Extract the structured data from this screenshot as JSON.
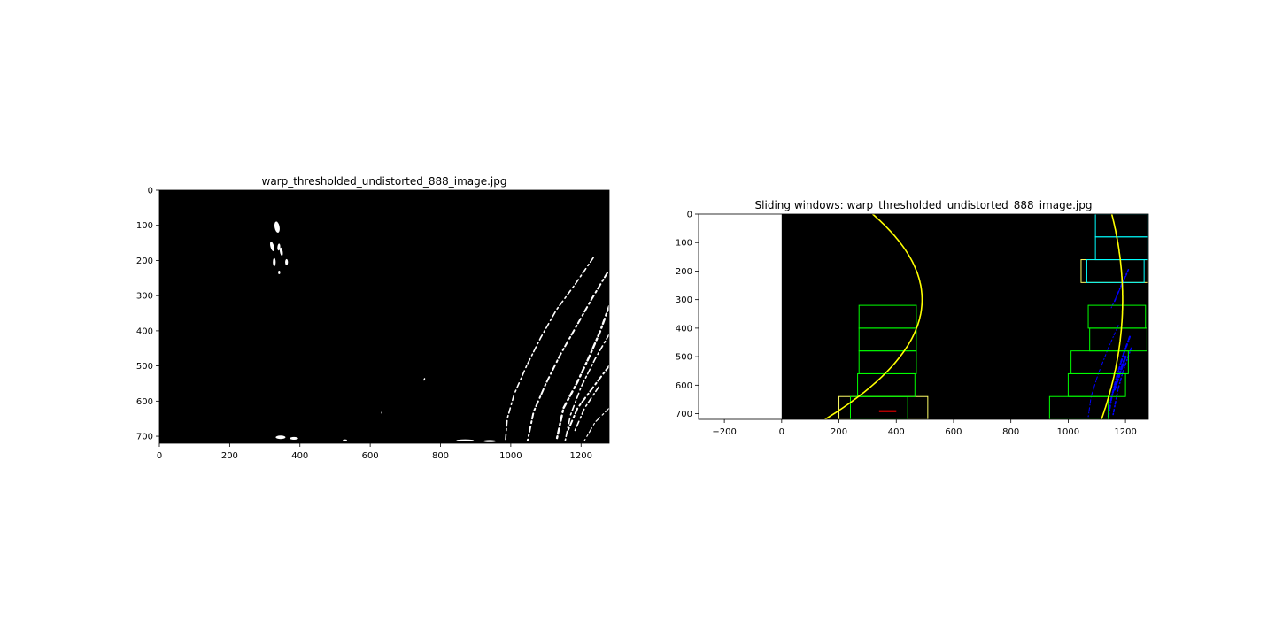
{
  "figure": {
    "background": "#ffffff"
  },
  "chart_data": [
    {
      "type": "image",
      "title": "warp_thresholded_undistorted_888_image.jpg",
      "xlabel": "",
      "ylabel": "",
      "xlim": [
        0,
        1280
      ],
      "ylim": [
        720,
        0
      ],
      "xticks": [
        0,
        200,
        400,
        600,
        800,
        1000,
        1200
      ],
      "yticks": [
        0,
        100,
        200,
        300,
        400,
        500,
        600,
        700
      ],
      "grid": false,
      "legend": "none",
      "colors": {
        "background": "#000000",
        "pixels": "#ffffff"
      },
      "blobs": [
        {
          "x": 335,
          "y": 105,
          "rx": 7,
          "ry": 16,
          "rot": -10
        },
        {
          "x": 321,
          "y": 160,
          "rx": 5,
          "ry": 14,
          "rot": -15
        },
        {
          "x": 340,
          "y": 162,
          "rx": 4,
          "ry": 10,
          "rot": 5
        },
        {
          "x": 347,
          "y": 175,
          "rx": 4,
          "ry": 12,
          "rot": -10
        },
        {
          "x": 327,
          "y": 205,
          "rx": 4,
          "ry": 12,
          "rot": 0
        },
        {
          "x": 362,
          "y": 205,
          "rx": 4,
          "ry": 9,
          "rot": 0
        },
        {
          "x": 341,
          "y": 234,
          "rx": 3,
          "ry": 5,
          "rot": 0
        },
        {
          "x": 754,
          "y": 538,
          "rx": 2,
          "ry": 4,
          "rot": 20
        },
        {
          "x": 633,
          "y": 633,
          "rx": 2,
          "ry": 3,
          "rot": 0
        },
        {
          "x": 345,
          "y": 703,
          "rx": 14,
          "ry": 5,
          "rot": 0
        },
        {
          "x": 383,
          "y": 706,
          "rx": 12,
          "ry": 4,
          "rot": 0
        },
        {
          "x": 528,
          "y": 712,
          "rx": 6,
          "ry": 3,
          "rot": 0
        },
        {
          "x": 870,
          "y": 712,
          "rx": 25,
          "ry": 3,
          "rot": 0
        },
        {
          "x": 940,
          "y": 714,
          "rx": 18,
          "ry": 3,
          "rot": 0
        }
      ],
      "strokes": [
        {
          "points": [
            [
              1235,
              192
            ],
            [
              1185,
              265
            ],
            [
              1130,
              340
            ],
            [
              1085,
              420
            ],
            [
              1045,
              500
            ],
            [
              1010,
              580
            ],
            [
              990,
              650
            ],
            [
              985,
              712
            ]
          ],
          "width": 4
        },
        {
          "points": [
            [
              1275,
              235
            ],
            [
              1230,
              310
            ],
            [
              1185,
              390
            ],
            [
              1140,
              470
            ],
            [
              1100,
              550
            ],
            [
              1065,
              630
            ],
            [
              1048,
              712
            ]
          ],
          "width": 5
        },
        {
          "points": [
            [
              1280,
              330
            ],
            [
              1255,
              400
            ],
            [
              1225,
              470
            ],
            [
              1190,
              545
            ],
            [
              1150,
              620
            ],
            [
              1130,
              712
            ]
          ],
          "width": 6
        },
        {
          "points": [
            [
              1280,
              410
            ],
            [
              1240,
              480
            ],
            [
              1200,
              560
            ],
            [
              1170,
              640
            ],
            [
              1155,
              712
            ]
          ],
          "width": 4
        },
        {
          "points": [
            [
              1280,
              500
            ],
            [
              1235,
              560
            ],
            [
              1190,
              620
            ],
            [
              1160,
              690
            ]
          ],
          "width": 5
        },
        {
          "points": [
            [
              1250,
              560
            ],
            [
              1210,
              620
            ],
            [
              1180,
              690
            ]
          ],
          "width": 4
        },
        {
          "points": [
            [
              1280,
              620
            ],
            [
              1240,
              660
            ],
            [
              1210,
              712
            ]
          ],
          "width": 3
        }
      ]
    },
    {
      "type": "image",
      "title": "Sliding windows: warp_thresholded_undistorted_888_image.jpg",
      "xlabel": "",
      "ylabel": "",
      "xlim": [
        -290,
        1280
      ],
      "ylim": [
        720,
        0
      ],
      "xticks": [
        -200,
        0,
        200,
        400,
        600,
        800,
        1000,
        1200
      ],
      "yticks": [
        0,
        100,
        200,
        300,
        400,
        500,
        600,
        700
      ],
      "grid": false,
      "legend": "none",
      "colors": {
        "image_background": "#000000",
        "window": "#00ff00",
        "window_alt": "#ffff66",
        "window_cyan": "#00ffff",
        "lane_pixels": "#0000ff",
        "fit_curve": "#ffff00",
        "label": "#ff0000"
      },
      "left_windows": [
        [
          200,
          640,
          510,
          720,
          "window_alt"
        ],
        [
          240,
          640,
          440,
          720,
          "window"
        ],
        [
          265,
          560,
          465,
          640,
          "window"
        ],
        [
          270,
          480,
          470,
          560,
          "window"
        ],
        [
          270,
          400,
          470,
          480,
          "window"
        ],
        [
          270,
          320,
          470,
          400,
          "window"
        ]
      ],
      "right_windows": [
        [
          935,
          640,
          1140,
          720,
          "window"
        ],
        [
          1000,
          560,
          1200,
          640,
          "window"
        ],
        [
          1010,
          480,
          1210,
          560,
          "window"
        ],
        [
          1075,
          400,
          1275,
          480,
          "window"
        ],
        [
          1070,
          320,
          1270,
          400,
          "window"
        ],
        [
          1045,
          160,
          1280,
          240,
          "window_alt"
        ],
        [
          1065,
          160,
          1265,
          240,
          "window_cyan"
        ],
        [
          1095,
          80,
          1280,
          160,
          "window_cyan"
        ],
        [
          1095,
          0,
          1280,
          80,
          "window_cyan"
        ]
      ],
      "left_fit": {
        "y_vertex": 300,
        "x_vertex": 490,
        "a": -0.00192
      },
      "right_fit": {
        "y_vertex": 300,
        "x_vertex": 1190,
        "a": -0.00042
      },
      "lane_pixels": [
        {
          "points": [
            [
              1210,
              195
            ],
            [
              1185,
              250
            ],
            [
              1160,
              310
            ]
          ],
          "width": 3
        },
        {
          "points": [
            [
              1205,
              210
            ],
            [
              1175,
              275
            ],
            [
              1150,
              330
            ]
          ],
          "width": 2
        },
        {
          "points": [
            [
              1175,
              390
            ],
            [
              1140,
              470
            ],
            [
              1105,
              560
            ],
            [
              1080,
              640
            ],
            [
              1070,
              710
            ]
          ],
          "width": 2
        },
        {
          "points": [
            [
              1215,
              430
            ],
            [
              1190,
              500
            ],
            [
              1170,
              570
            ],
            [
              1150,
              650
            ],
            [
              1140,
              712
            ]
          ],
          "width": 4
        },
        {
          "points": [
            [
              1220,
              470
            ],
            [
              1195,
              540
            ],
            [
              1175,
              610
            ],
            [
              1155,
              712
            ]
          ],
          "width": 3
        },
        {
          "points": [
            [
              1200,
              500
            ],
            [
              1180,
              560
            ],
            [
              1160,
              620
            ]
          ],
          "width": 5
        }
      ]
    }
  ]
}
